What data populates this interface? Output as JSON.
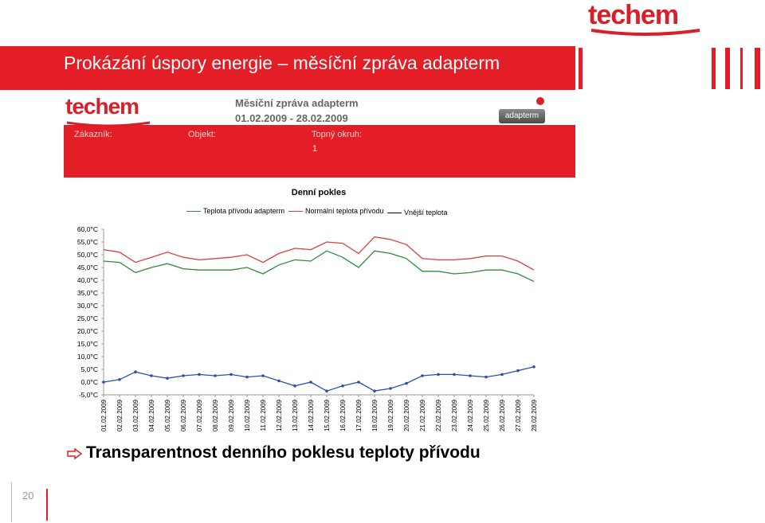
{
  "brand": {
    "logo_text": "techem",
    "accent_color": "#e41e26"
  },
  "slide": {
    "title": "Prokázání úspory energie – měsíční zpráva adapterm",
    "bottom_text": "Transparentnost denního poklesu teploty přívodu",
    "page_number": "20"
  },
  "report": {
    "title": "Měsíční zpráva adapterm",
    "date_range": "01.02.2009 - 28.02.2009",
    "product_logo": "adapterm",
    "fields": {
      "customer_label": "Zákazník:",
      "object_label": "Objekt:",
      "circuit_label": "Topný okruh:",
      "circuit_value": "1"
    }
  },
  "chart_data": {
    "type": "line",
    "title": "Denní pokles",
    "categories": [
      "01.02.2009",
      "02.02.2009",
      "03.02.2009",
      "04.02.2009",
      "05.02.2009",
      "06.02.2009",
      "07.02.2009",
      "08.02.2009",
      "09.02.2009",
      "10.02.2009",
      "11.02.2009",
      "12.02.2009",
      "13.02.2009",
      "14.02.2009",
      "15.02.2009",
      "16.02.2009",
      "17.02.2009",
      "18.02.2009",
      "19.02.2009",
      "20.02.2009",
      "21.02.2009",
      "22.02.2009",
      "23.02.2009",
      "24.02.2009",
      "25.02.2009",
      "26.02.2009",
      "27.02.2009",
      "28.02.2009"
    ],
    "y_ticks": [
      "60,0°C",
      "55,0°C",
      "50,0°C",
      "45,0°C",
      "40,0°C",
      "35,0°C",
      "30,0°C",
      "25,0°C",
      "20,0°C",
      "15,0°C",
      "10,0°C",
      "5,0°C",
      "0,0°C",
      "-5,0°C"
    ],
    "ylim": [
      -5,
      60
    ],
    "series": [
      {
        "name": "Teplota přívodu adapterm",
        "color": "#2e8b3e",
        "values": [
          47.5,
          47.0,
          43.0,
          45.0,
          46.5,
          44.5,
          44.0,
          44.0,
          44.0,
          45.0,
          42.5,
          46.0,
          48.0,
          47.5,
          51.5,
          49.0,
          45.0,
          51.5,
          50.5,
          48.5,
          43.5,
          43.5,
          42.5,
          43.0,
          44.0,
          44.0,
          42.5,
          39.5
        ]
      },
      {
        "name": "Normální teplota přívodu",
        "color": "#d84040",
        "values": [
          52.0,
          51.0,
          47.0,
          49.0,
          51.0,
          49.0,
          48.0,
          48.5,
          49.0,
          50.0,
          47.0,
          50.5,
          52.5,
          52.0,
          55.0,
          54.5,
          50.5,
          57.0,
          56.0,
          54.0,
          48.5,
          48.0,
          48.0,
          48.5,
          49.5,
          49.5,
          47.5,
          44.0
        ]
      },
      {
        "name": "Vnější teplota",
        "color": "#2952a8",
        "values": [
          0.0,
          1.0,
          4.0,
          2.5,
          1.5,
          2.5,
          3.0,
          2.5,
          3.0,
          2.0,
          2.5,
          0.5,
          -1.5,
          0.0,
          -3.5,
          -1.5,
          0.0,
          -3.5,
          -2.5,
          -0.5,
          2.5,
          3.0,
          3.0,
          2.5,
          2.0,
          3.0,
          4.5,
          6.0
        ]
      }
    ]
  }
}
